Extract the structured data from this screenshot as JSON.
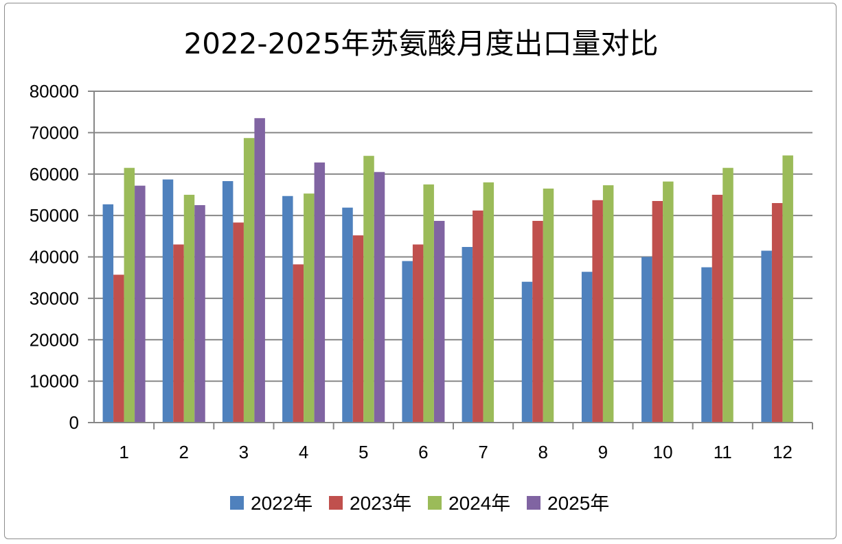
{
  "chart_data": {
    "type": "bar",
    "title": "2022-2025年苏氨酸月度出口量对比",
    "xlabel": "",
    "ylabel": "",
    "categories": [
      "1",
      "2",
      "3",
      "4",
      "5",
      "6",
      "7",
      "8",
      "9",
      "10",
      "11",
      "12"
    ],
    "ylim": [
      0,
      80000
    ],
    "yticks": [
      0,
      10000,
      20000,
      30000,
      40000,
      50000,
      60000,
      70000,
      80000
    ],
    "grid": true,
    "legend": "bottom",
    "series": [
      {
        "name": "2022年",
        "color": "#4f81bd",
        "values": [
          52700,
          58700,
          58300,
          54700,
          51900,
          39000,
          42400,
          34000,
          36400,
          40000,
          37500,
          41500
        ]
      },
      {
        "name": "2023年",
        "color": "#c0504d",
        "values": [
          35700,
          43000,
          48300,
          38200,
          45200,
          43000,
          51200,
          48700,
          53700,
          53500,
          55000,
          53000
        ]
      },
      {
        "name": "2024年",
        "color": "#9bbb59",
        "values": [
          61500,
          55000,
          68700,
          55300,
          64400,
          57500,
          58000,
          56500,
          57300,
          58200,
          61500,
          64500
        ]
      },
      {
        "name": "2025年",
        "color": "#8064a2",
        "values": [
          57200,
          52500,
          73500,
          62800,
          60500,
          48700,
          null,
          null,
          null,
          null,
          null,
          null
        ]
      }
    ]
  }
}
